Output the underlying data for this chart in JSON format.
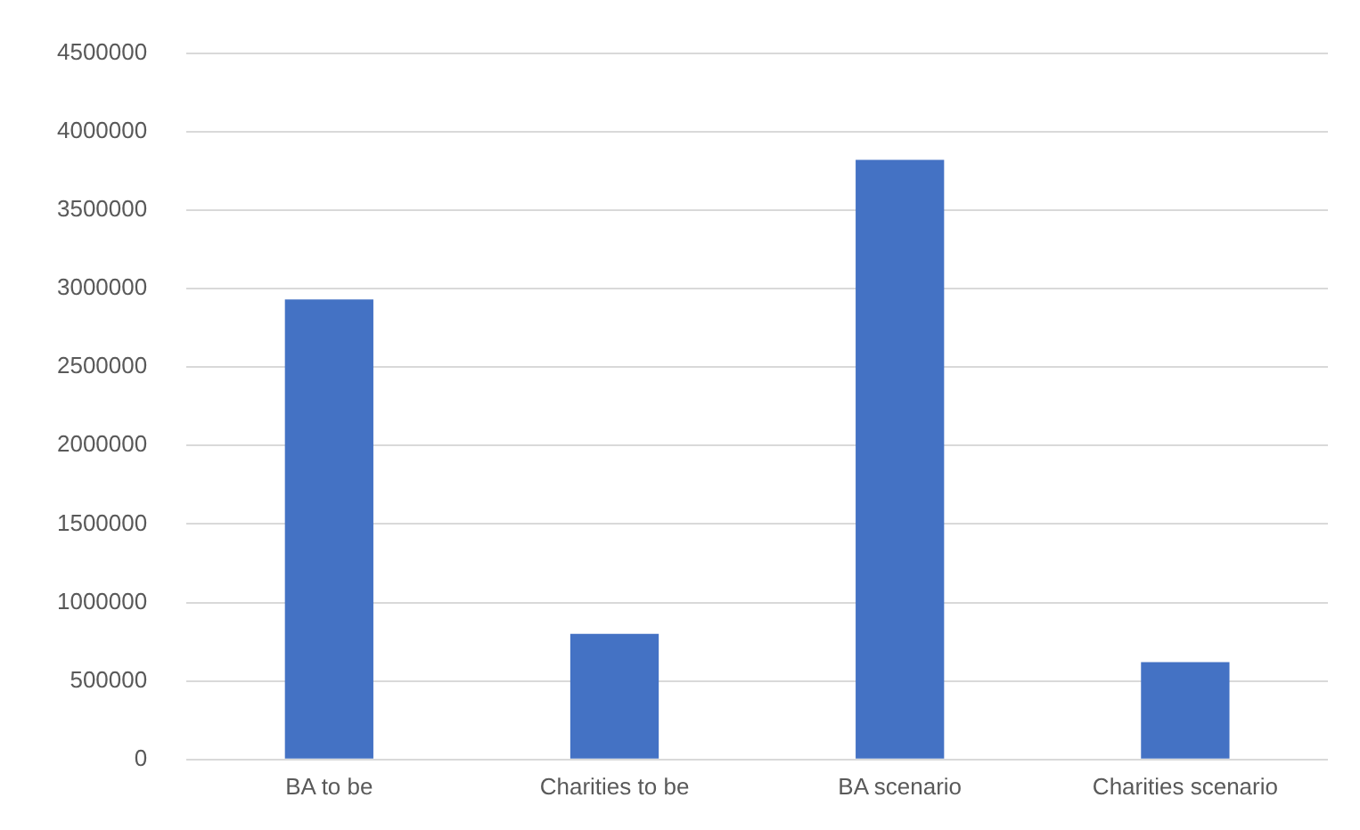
{
  "chart_data": {
    "type": "bar",
    "categories": [
      "BA to be",
      "Charities to be",
      "BA scenario",
      "Charities scenario"
    ],
    "values": [
      2930000,
      800000,
      3820000,
      620000
    ],
    "color": "#4472c4",
    "ylim": [
      0,
      4500000
    ],
    "yticks": [
      0,
      500000,
      1000000,
      1500000,
      2000000,
      2500000,
      3000000,
      3500000,
      4000000,
      4500000
    ],
    "grid": "y",
    "legend": false
  }
}
